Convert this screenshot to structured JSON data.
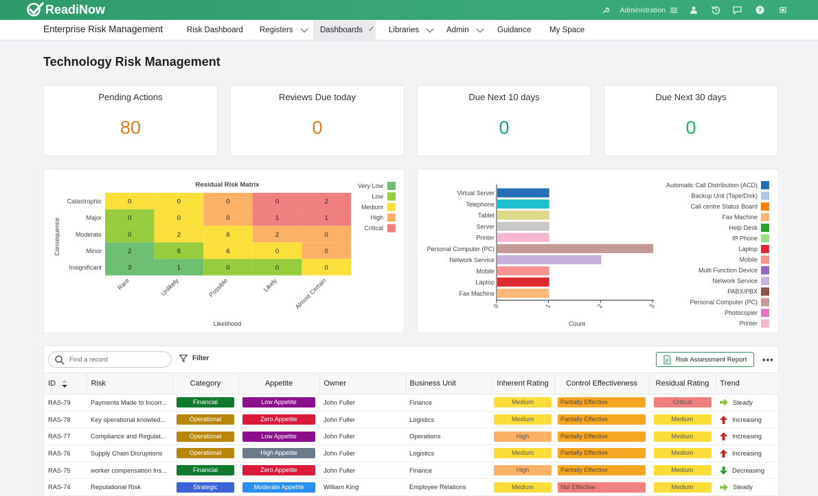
{
  "header": {
    "logo_text": "ReadiNow",
    "admin_label": "Administration",
    "icons": [
      "wrench-icon",
      "admin-menu-icon",
      "user-icon",
      "history-icon",
      "chat-icon",
      "help-icon",
      "window-icon"
    ]
  },
  "nav": {
    "app_title": "Enterprise Risk Management",
    "items": [
      {
        "label": "Risk Dashboard"
      },
      {
        "label": "Registers"
      },
      {
        "label": "Dashboards"
      },
      {
        "label": "Libraries"
      },
      {
        "label": "Admin"
      },
      {
        "label": "Guidance"
      },
      {
        "label": "My Space"
      }
    ]
  },
  "page": {
    "title": "Technology Risk Management"
  },
  "kpis": [
    {
      "title": "Pending Actions",
      "value": "80",
      "color": "#e07b1a"
    },
    {
      "title": "Reviews Due today",
      "value": "0",
      "color": "#e07b1a"
    },
    {
      "title": "Due Next 10 days",
      "value": "0",
      "color": "#17a08a"
    },
    {
      "title": "Due Next 30 days",
      "value": "0",
      "color": "#1fb55a"
    }
  ],
  "chart_data": [
    {
      "type": "heatmap",
      "title": "Residual Risk Matrix",
      "xlabel": "Likelihood",
      "ylabel": "Consequence",
      "x_categories": [
        "Rare",
        "Unlikely",
        "Possible",
        "Likely",
        "Almost Certain"
      ],
      "y_categories": [
        "Catastrophic",
        "Major",
        "Moderate",
        "Minor",
        "Insignificant"
      ],
      "values": [
        [
          0,
          0,
          0,
          0,
          2
        ],
        [
          0,
          0,
          0,
          1,
          1
        ],
        [
          0,
          2,
          6,
          2,
          0
        ],
        [
          2,
          8,
          6,
          0,
          0
        ],
        [
          3,
          1,
          0,
          0,
          0
        ]
      ],
      "cell_levels": [
        [
          "Medium",
          "Medium",
          "High",
          "Critical",
          "Critical"
        ],
        [
          "Low",
          "Medium",
          "High",
          "Critical",
          "Critical"
        ],
        [
          "Low",
          "Medium",
          "Medium",
          "High",
          "High"
        ],
        [
          "Very Low",
          "Low",
          "Medium",
          "Medium",
          "High"
        ],
        [
          "Very Low",
          "Very Low",
          "Low",
          "Low",
          "Medium"
        ]
      ],
      "legend": [
        {
          "name": "Very Low",
          "color": "#6fbf73"
        },
        {
          "name": "Low",
          "color": "#97cc3e"
        },
        {
          "name": "Medium",
          "color": "#fbe03c"
        },
        {
          "name": "High",
          "color": "#fbb267"
        },
        {
          "name": "Critical",
          "color": "#f08080"
        }
      ],
      "legend_position": "right"
    },
    {
      "type": "bar",
      "orientation": "horizontal",
      "xlabel": "Count",
      "xlim": [
        0,
        3
      ],
      "x_ticks": [
        "0",
        "1",
        "2",
        "3"
      ],
      "categories": [
        "Virtual Server",
        "Telephone",
        "Tablet",
        "Server",
        "Printer",
        "Personal Computer (PC)",
        "Network Service",
        "Mobile",
        "Laptop",
        "Fax Machine"
      ],
      "values": [
        1,
        1,
        1,
        1,
        1,
        3,
        2,
        1,
        1,
        1
      ],
      "colors": [
        "#2570b5",
        "#1ec0cf",
        "#dcd98a",
        "#c8c8c8",
        "#f5b6d0",
        "#c39a95",
        "#c6b1da",
        "#fb9292",
        "#dd2a2f",
        "#fdb877"
      ],
      "legend": [
        {
          "name": "Automatic Call Distribution (ACD)",
          "color": "#2570b5"
        },
        {
          "name": "Backup Unit (Tape/Disk)",
          "color": "#aec7e8"
        },
        {
          "name": "Call centre Status Board",
          "color": "#ff7f0e"
        },
        {
          "name": "Fax Machine",
          "color": "#fdb877"
        },
        {
          "name": "Help Desk",
          "color": "#2ca02c"
        },
        {
          "name": "IP Phone",
          "color": "#98df8a"
        },
        {
          "name": "Laptop",
          "color": "#dd2a2f"
        },
        {
          "name": "Mobile",
          "color": "#fb9292"
        },
        {
          "name": "Multi Function Device",
          "color": "#9467bd"
        },
        {
          "name": "Network Service",
          "color": "#c6b1da"
        },
        {
          "name": "PABX/PBX",
          "color": "#8c564b"
        },
        {
          "name": "Personal Computer (PC)",
          "color": "#c39a95"
        },
        {
          "name": "Photocopier",
          "color": "#e377c2"
        },
        {
          "name": "Printer",
          "color": "#f5b6d0"
        }
      ],
      "legend_position": "right"
    }
  ],
  "table": {
    "search_placeholder": "Find a record",
    "filter_label": "Filter",
    "report_label": "Risk Assessment Report",
    "more_label": "•••",
    "columns": [
      "ID",
      "Risk",
      "Category",
      "Appetite",
      "Owner",
      "Business Unit",
      "Inherent Rating",
      "Control Effectiveness",
      "Residual Rating",
      "Trend"
    ],
    "rows": [
      {
        "id": "RAS-79",
        "risk": "Payments Made to Incorr...",
        "category": "Financial",
        "appetite": "Low Appetite",
        "owner": "John Fuller",
        "unit": "Finance",
        "inherent": "Medium",
        "control": "Partially Effective",
        "residual": "Critical",
        "trend": "Steady"
      },
      {
        "id": "RAS-78",
        "risk": "Key operational knowled...",
        "category": "Operational",
        "appetite": "Zero Appetite",
        "owner": "John Fuller",
        "unit": "Logistics",
        "inherent": "Medium",
        "control": "Partially Effective",
        "residual": "Medium",
        "trend": "Increasing"
      },
      {
        "id": "RAS-77",
        "risk": "Compliance and Regulat...",
        "category": "Operational",
        "appetite": "Low Appetite",
        "owner": "John Fuller",
        "unit": "Operations",
        "inherent": "High",
        "control": "Partially Effective",
        "residual": "Medium",
        "trend": "Increasing"
      },
      {
        "id": "RAS-76",
        "risk": "Supply Chain Disruptions",
        "category": "Operational",
        "appetite": "High Appetite",
        "owner": "John Fuller",
        "unit": "Logistics",
        "inherent": "Medium",
        "control": "Partially Effective",
        "residual": "Medium",
        "trend": "Increasing"
      },
      {
        "id": "RAS-75",
        "risk": "worker compensation Ins...",
        "category": "Financial",
        "appetite": "Zero Appetite",
        "owner": "John Fuller",
        "unit": "Finance",
        "inherent": "High",
        "control": "Partially Effective",
        "residual": "Medium",
        "trend": "Decreasing"
      },
      {
        "id": "RAS-74",
        "risk": "Reputational Risk",
        "category": "Strategic",
        "appetite": "Moderate Appetite",
        "owner": "William King",
        "unit": "Employee Relations",
        "inherent": "Medium",
        "control": "Not Effective",
        "residual": "Medium",
        "trend": "Steady"
      }
    ],
    "colors": {
      "category": {
        "Financial": "#0f7a2e",
        "Operational": "#b8860b",
        "Strategic": "#3b62d6"
      },
      "appetite": {
        "Low Appetite": "#8b0f8b",
        "Zero Appetite": "#d91a3a",
        "High Appetite": "#6b7b8c",
        "Moderate Appetite": "#2a8ff0"
      },
      "rating": {
        "Medium": "#fbdd3a",
        "High": "#fbb267",
        "Critical": "#f08080"
      },
      "control": {
        "Partially Effective": "#f5a623",
        "Not Effective": "#f08080"
      },
      "trend": {
        "Steady": "#8bc34a",
        "Increasing": "#c62828",
        "Decreasing": "#2e9e2e"
      }
    }
  }
}
